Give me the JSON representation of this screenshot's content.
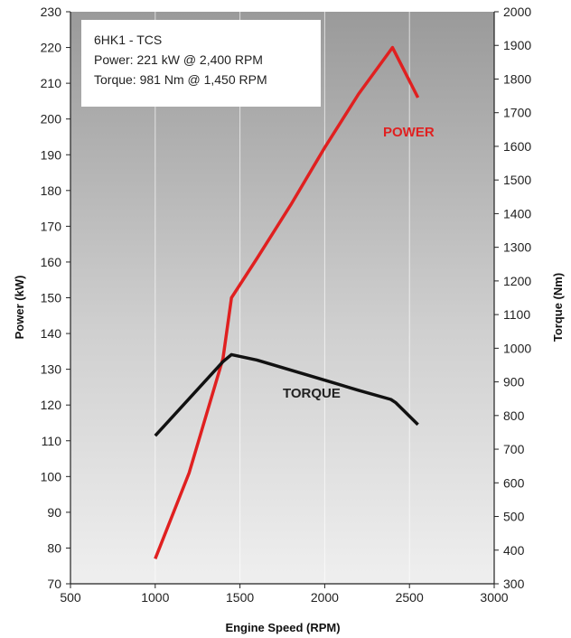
{
  "chart_data": {
    "type": "line",
    "title": "",
    "xlabel": "Engine Speed (RPM)",
    "ylabel": "Power (kW)",
    "y2label": "Torque (Nm)",
    "xlim": [
      500,
      3000
    ],
    "ylim": [
      70,
      230
    ],
    "y2lim": [
      300,
      2000
    ],
    "x_ticks": [
      "500",
      "1000",
      "1500",
      "2000",
      "2500",
      "3000"
    ],
    "y_ticks": [
      "70",
      "80",
      "90",
      "100",
      "110",
      "120",
      "130",
      "140",
      "150",
      "160",
      "170",
      "180",
      "190",
      "200",
      "210",
      "220",
      "230"
    ],
    "y2_ticks": [
      "300",
      "400",
      "500",
      "600",
      "700",
      "800",
      "900",
      "1000",
      "1100",
      "1200",
      "1300",
      "1400",
      "1500",
      "1600",
      "1700",
      "1800",
      "1900",
      "2000"
    ],
    "grid": true,
    "info_box": [
      "6HK1 - TCS",
      "Power: 221 kW @ 2,400 RPM",
      "Torque: 981 Nm @ 1,450 RPM"
    ],
    "series": [
      {
        "name": "POWER",
        "axis": "left",
        "color": "#e02020",
        "x": [
          1000,
          1200,
          1400,
          1450,
          1600,
          1800,
          2000,
          2200,
          2400,
          2550
        ],
        "y": [
          77,
          101,
          133,
          150,
          161,
          176,
          192,
          207,
          220,
          206
        ]
      },
      {
        "name": "TORQUE",
        "axis": "right",
        "color": "#111111",
        "x": [
          1000,
          1200,
          1400,
          1450,
          1600,
          1800,
          2000,
          2200,
          2390,
          2420,
          2550
        ],
        "y": [
          740,
          850,
          960,
          981,
          965,
          935,
          905,
          875,
          848,
          838,
          773
        ]
      }
    ]
  }
}
